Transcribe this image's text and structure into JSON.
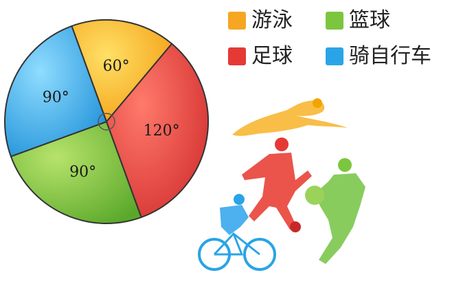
{
  "chart_data": {
    "type": "pie",
    "slices": [
      {
        "name": "游泳",
        "angle": 60,
        "label": "60°",
        "color": "#f6a623"
      },
      {
        "name": "足球",
        "angle": 120,
        "label": "120°",
        "color": "#e53935"
      },
      {
        "name": "篮球",
        "angle": 90,
        "label": "90°",
        "color": "#7cc63f"
      },
      {
        "name": "骑自行车",
        "angle": 90,
        "label": "90°",
        "color": "#2aa4e6"
      }
    ],
    "legend": [
      {
        "label": "游泳",
        "color": "#f6a623"
      },
      {
        "label": "篮球",
        "color": "#7cc63f"
      },
      {
        "label": "足球",
        "color": "#e53935"
      },
      {
        "label": "骑自行车",
        "color": "#2aa4e6"
      }
    ]
  },
  "illustration": {
    "icon": "athletes-silhouettes"
  }
}
